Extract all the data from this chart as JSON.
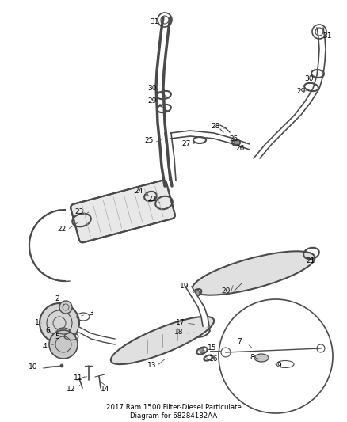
{
  "title": "2017 Ram 1500 Filter-Diesel Particulate\nDiagram for 68284182AA",
  "bg_color": "#ffffff",
  "line_color": "#4a4a4a",
  "text_color": "#000000",
  "label_fontsize": 6.5,
  "title_fontsize": 6.2
}
